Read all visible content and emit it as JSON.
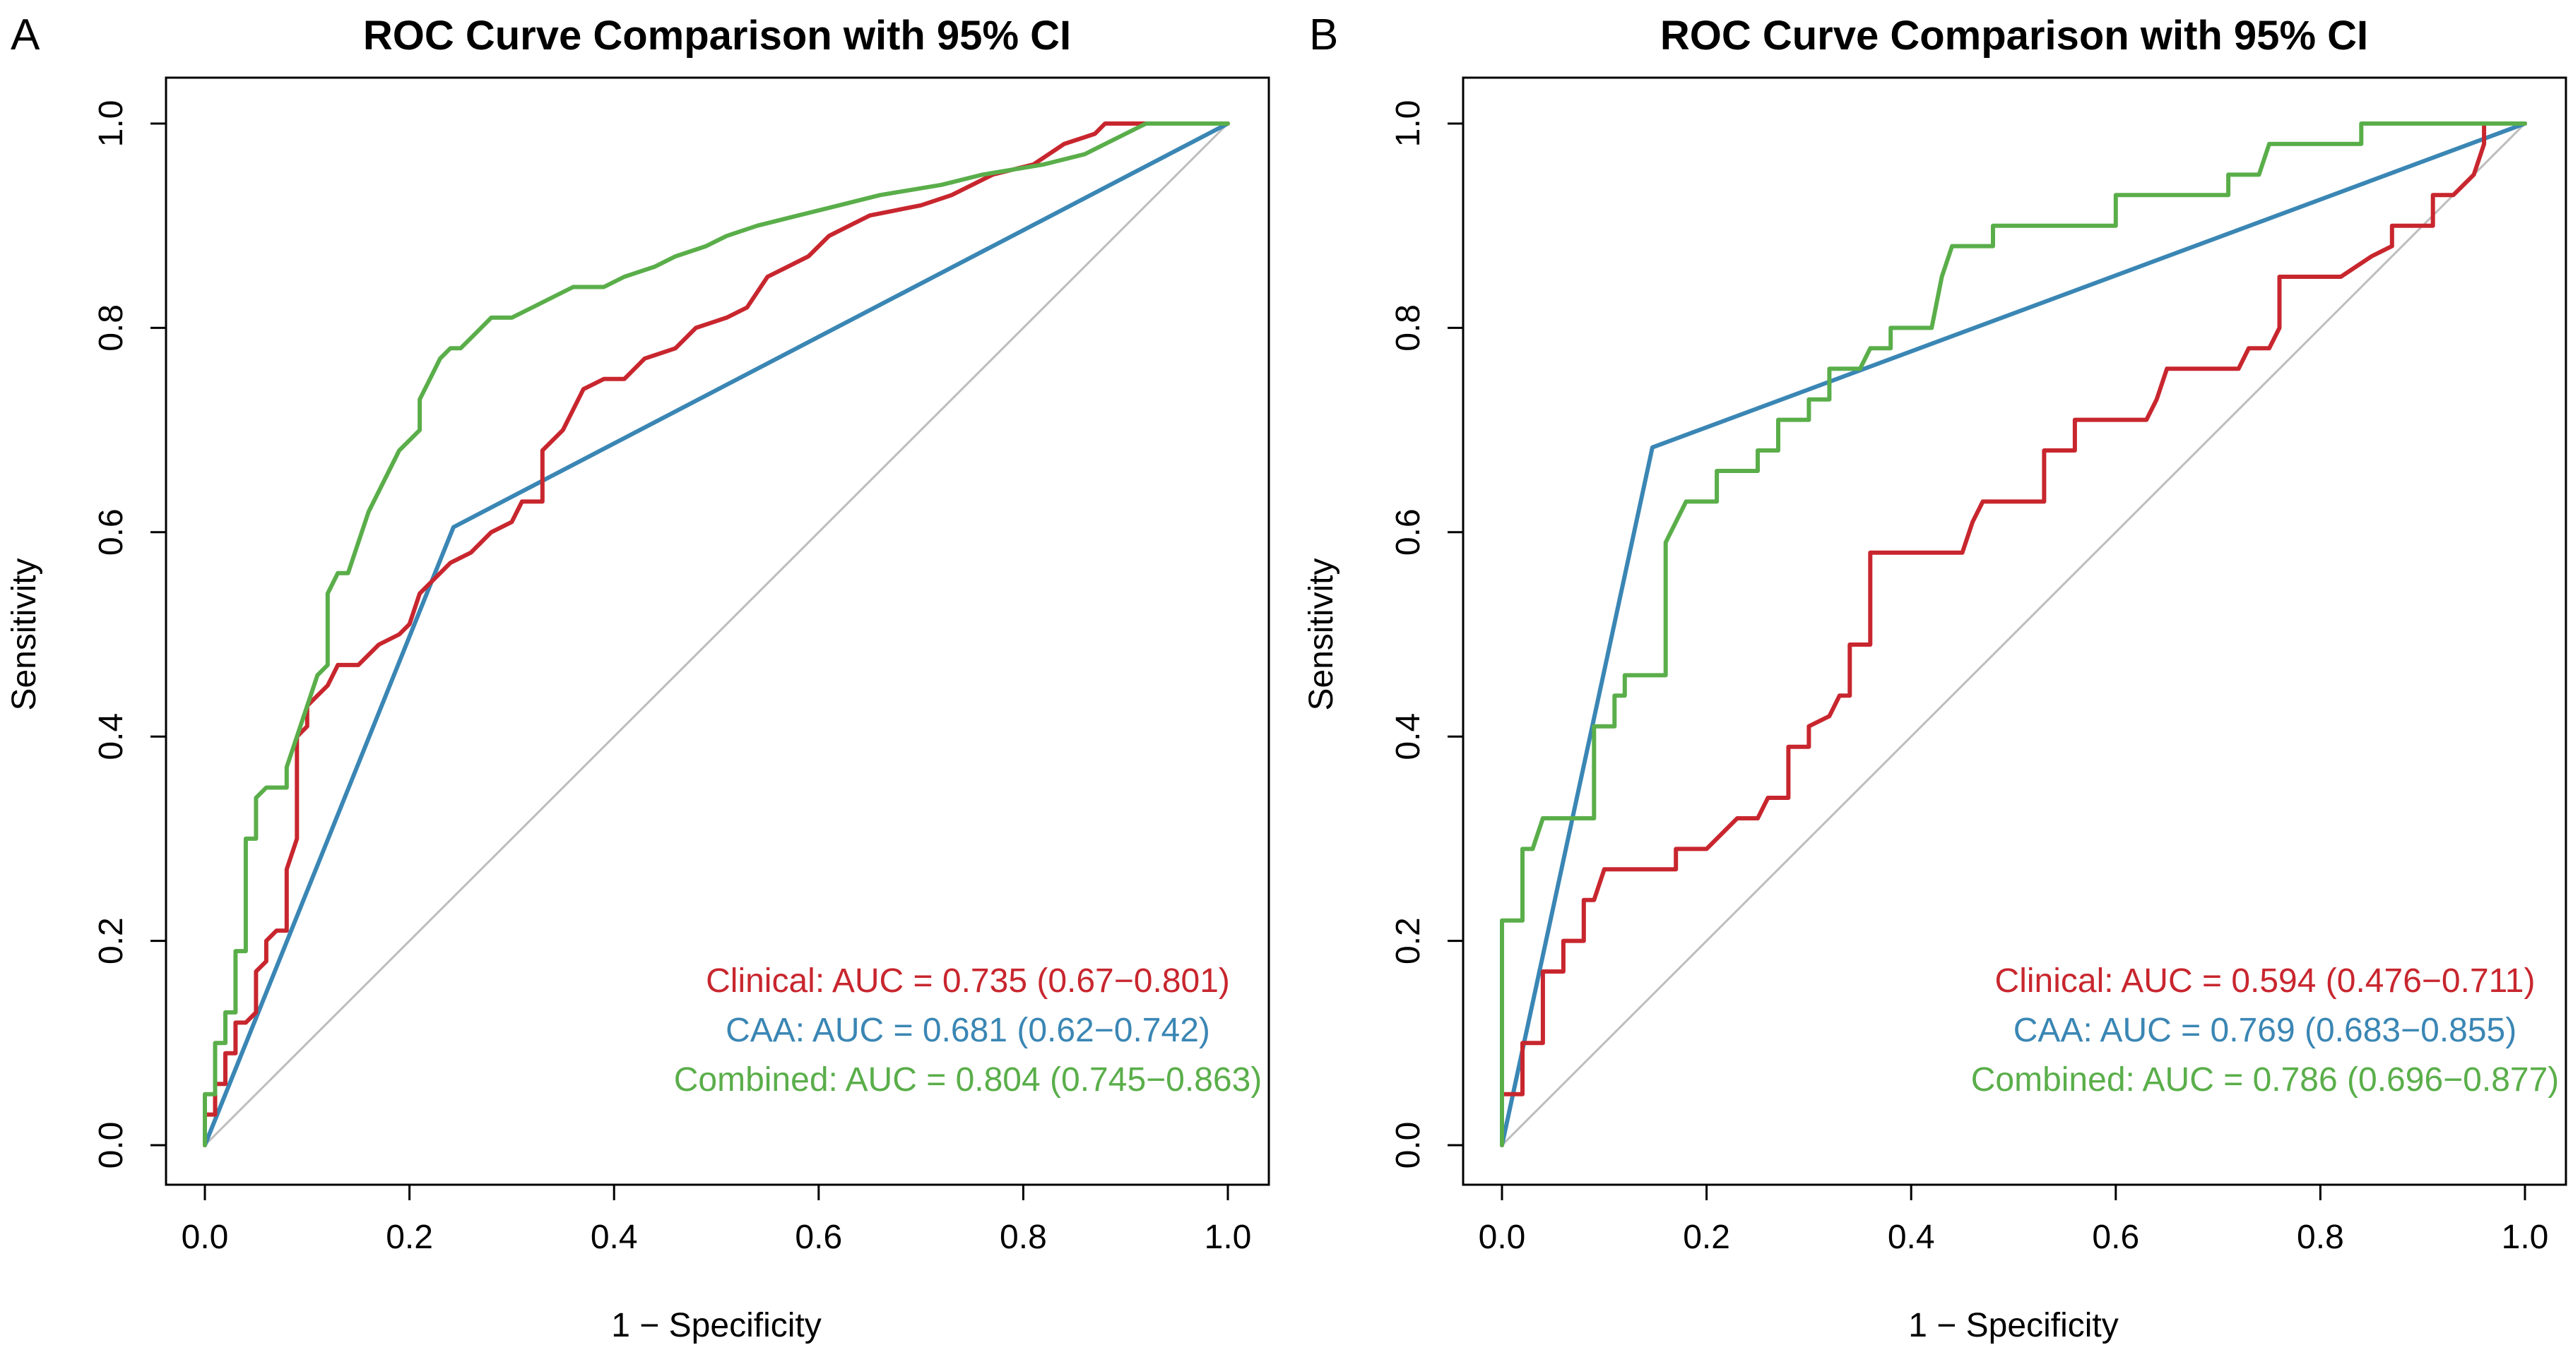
{
  "colors": {
    "clinical": "#c8262e",
    "caa": "#3a86b4",
    "combined": "#5aae4a",
    "diagonal": "#bdbdbd",
    "axis": "#000000"
  },
  "chart_data": [
    {
      "panel": "A",
      "type": "line",
      "title": "ROC Curve Comparison with 95% CI",
      "xlabel": "1 − Specificity",
      "ylabel": "Sensitivity",
      "xlim": [
        0,
        1
      ],
      "ylim": [
        0,
        1
      ],
      "x_ticks": [
        "0.0",
        "0.2",
        "0.4",
        "0.6",
        "0.8",
        "1.0"
      ],
      "y_ticks": [
        "0.0",
        "0.2",
        "0.4",
        "0.6",
        "0.8",
        "1.0"
      ],
      "reference_line": [
        [
          0,
          0
        ],
        [
          1,
          1
        ]
      ],
      "series": [
        {
          "name": "Clinical",
          "key": "clinical",
          "legend": "Clinical: AUC = 0.735 (0.67−0.801)",
          "points": [
            [
              0,
              0
            ],
            [
              0,
              0.03
            ],
            [
              0.01,
              0.03
            ],
            [
              0.01,
              0.06
            ],
            [
              0.02,
              0.06
            ],
            [
              0.02,
              0.09
            ],
            [
              0.03,
              0.09
            ],
            [
              0.03,
              0.12
            ],
            [
              0.04,
              0.12
            ],
            [
              0.05,
              0.13
            ],
            [
              0.05,
              0.17
            ],
            [
              0.06,
              0.18
            ],
            [
              0.06,
              0.2
            ],
            [
              0.07,
              0.21
            ],
            [
              0.08,
              0.21
            ],
            [
              0.08,
              0.27
            ],
            [
              0.09,
              0.3
            ],
            [
              0.09,
              0.4
            ],
            [
              0.1,
              0.41
            ],
            [
              0.1,
              0.43
            ],
            [
              0.11,
              0.44
            ],
            [
              0.12,
              0.45
            ],
            [
              0.13,
              0.47
            ],
            [
              0.15,
              0.47
            ],
            [
              0.17,
              0.49
            ],
            [
              0.19,
              0.5
            ],
            [
              0.2,
              0.51
            ],
            [
              0.21,
              0.54
            ],
            [
              0.22,
              0.55
            ],
            [
              0.23,
              0.56
            ],
            [
              0.24,
              0.57
            ],
            [
              0.26,
              0.58
            ],
            [
              0.28,
              0.6
            ],
            [
              0.3,
              0.61
            ],
            [
              0.31,
              0.63
            ],
            [
              0.33,
              0.63
            ],
            [
              0.33,
              0.68
            ],
            [
              0.35,
              0.7
            ],
            [
              0.37,
              0.74
            ],
            [
              0.39,
              0.75
            ],
            [
              0.41,
              0.75
            ],
            [
              0.43,
              0.77
            ],
            [
              0.46,
              0.78
            ],
            [
              0.48,
              0.8
            ],
            [
              0.51,
              0.81
            ],
            [
              0.53,
              0.82
            ],
            [
              0.55,
              0.85
            ],
            [
              0.57,
              0.86
            ],
            [
              0.59,
              0.87
            ],
            [
              0.61,
              0.89
            ],
            [
              0.63,
              0.9
            ],
            [
              0.65,
              0.91
            ],
            [
              0.7,
              0.92
            ],
            [
              0.73,
              0.93
            ],
            [
              0.77,
              0.95
            ],
            [
              0.81,
              0.96
            ],
            [
              0.84,
              0.98
            ],
            [
              0.87,
              0.99
            ],
            [
              0.88,
              1
            ],
            [
              0.91,
              1
            ],
            [
              1,
              1
            ]
          ]
        },
        {
          "name": "CAA",
          "key": "caa",
          "legend": "CAA: AUC = 0.681 (0.62−0.742)",
          "points": [
            [
              0,
              0
            ],
            [
              0.243,
              0.605
            ],
            [
              1,
              1
            ]
          ]
        },
        {
          "name": "Combined",
          "key": "combined",
          "legend": "Combined: AUC = 0.804 (0.745−0.863)",
          "points": [
            [
              0,
              0
            ],
            [
              0,
              0.05
            ],
            [
              0.01,
              0.05
            ],
            [
              0.01,
              0.1
            ],
            [
              0.02,
              0.1
            ],
            [
              0.02,
              0.13
            ],
            [
              0.03,
              0.13
            ],
            [
              0.03,
              0.19
            ],
            [
              0.04,
              0.19
            ],
            [
              0.04,
              0.3
            ],
            [
              0.05,
              0.3
            ],
            [
              0.05,
              0.34
            ],
            [
              0.06,
              0.35
            ],
            [
              0.08,
              0.35
            ],
            [
              0.08,
              0.37
            ],
            [
              0.09,
              0.4
            ],
            [
              0.1,
              0.43
            ],
            [
              0.11,
              0.46
            ],
            [
              0.12,
              0.47
            ],
            [
              0.12,
              0.54
            ],
            [
              0.13,
              0.56
            ],
            [
              0.14,
              0.56
            ],
            [
              0.15,
              0.59
            ],
            [
              0.16,
              0.62
            ],
            [
              0.17,
              0.64
            ],
            [
              0.18,
              0.66
            ],
            [
              0.19,
              0.68
            ],
            [
              0.2,
              0.69
            ],
            [
              0.21,
              0.7
            ],
            [
              0.21,
              0.73
            ],
            [
              0.22,
              0.75
            ],
            [
              0.23,
              0.77
            ],
            [
              0.24,
              0.78
            ],
            [
              0.25,
              0.78
            ],
            [
              0.26,
              0.79
            ],
            [
              0.27,
              0.8
            ],
            [
              0.28,
              0.81
            ],
            [
              0.3,
              0.81
            ],
            [
              0.32,
              0.82
            ],
            [
              0.34,
              0.83
            ],
            [
              0.36,
              0.84
            ],
            [
              0.39,
              0.84
            ],
            [
              0.41,
              0.85
            ],
            [
              0.44,
              0.86
            ],
            [
              0.46,
              0.87
            ],
            [
              0.49,
              0.88
            ],
            [
              0.51,
              0.89
            ],
            [
              0.54,
              0.9
            ],
            [
              0.58,
              0.91
            ],
            [
              0.62,
              0.92
            ],
            [
              0.66,
              0.93
            ],
            [
              0.72,
              0.94
            ],
            [
              0.76,
              0.95
            ],
            [
              0.82,
              0.96
            ],
            [
              0.86,
              0.97
            ],
            [
              0.88,
              0.98
            ],
            [
              0.92,
              1
            ],
            [
              1,
              1
            ]
          ]
        }
      ]
    },
    {
      "panel": "B",
      "type": "line",
      "title": "ROC Curve Comparison with 95% CI",
      "xlabel": "1 − Specificity",
      "ylabel": "Sensitivity",
      "xlim": [
        0,
        1
      ],
      "ylim": [
        0,
        1
      ],
      "x_ticks": [
        "0.0",
        "0.2",
        "0.4",
        "0.6",
        "0.8",
        "1.0"
      ],
      "y_ticks": [
        "0.0",
        "0.2",
        "0.4",
        "0.6",
        "0.8",
        "1.0"
      ],
      "reference_line": [
        [
          0,
          0
        ],
        [
          1,
          1
        ]
      ],
      "series": [
        {
          "name": "Clinical",
          "key": "clinical",
          "legend": "Clinical: AUC = 0.594 (0.476−0.711)",
          "points": [
            [
              0,
              0
            ],
            [
              0,
              0.05
            ],
            [
              0.02,
              0.05
            ],
            [
              0.02,
              0.1
            ],
            [
              0.04,
              0.1
            ],
            [
              0.04,
              0.17
            ],
            [
              0.06,
              0.17
            ],
            [
              0.06,
              0.2
            ],
            [
              0.08,
              0.2
            ],
            [
              0.08,
              0.24
            ],
            [
              0.09,
              0.24
            ],
            [
              0.1,
              0.27
            ],
            [
              0.17,
              0.27
            ],
            [
              0.17,
              0.29
            ],
            [
              0.2,
              0.29
            ],
            [
              0.23,
              0.32
            ],
            [
              0.25,
              0.32
            ],
            [
              0.26,
              0.34
            ],
            [
              0.28,
              0.34
            ],
            [
              0.28,
              0.39
            ],
            [
              0.3,
              0.39
            ],
            [
              0.3,
              0.41
            ],
            [
              0.32,
              0.42
            ],
            [
              0.33,
              0.44
            ],
            [
              0.34,
              0.44
            ],
            [
              0.34,
              0.49
            ],
            [
              0.36,
              0.49
            ],
            [
              0.36,
              0.58
            ],
            [
              0.45,
              0.58
            ],
            [
              0.46,
              0.61
            ],
            [
              0.47,
              0.63
            ],
            [
              0.53,
              0.63
            ],
            [
              0.53,
              0.68
            ],
            [
              0.56,
              0.68
            ],
            [
              0.56,
              0.71
            ],
            [
              0.63,
              0.71
            ],
            [
              0.64,
              0.73
            ],
            [
              0.65,
              0.76
            ],
            [
              0.72,
              0.76
            ],
            [
              0.73,
              0.78
            ],
            [
              0.75,
              0.78
            ],
            [
              0.76,
              0.8
            ],
            [
              0.76,
              0.85
            ],
            [
              0.82,
              0.85
            ],
            [
              0.85,
              0.87
            ],
            [
              0.87,
              0.88
            ],
            [
              0.87,
              0.9
            ],
            [
              0.91,
              0.9
            ],
            [
              0.91,
              0.93
            ],
            [
              0.93,
              0.93
            ],
            [
              0.95,
              0.95
            ],
            [
              0.96,
              0.98
            ],
            [
              0.96,
              1
            ],
            [
              1,
              1
            ]
          ]
        },
        {
          "name": "CAA",
          "key": "caa",
          "legend": "CAA: AUC = 0.769 (0.683−0.855)",
          "points": [
            [
              0,
              0
            ],
            [
              0.147,
              0.683
            ],
            [
              1,
              1
            ]
          ]
        },
        {
          "name": "Combined",
          "key": "combined",
          "legend": "Combined: AUC = 0.786 (0.696−0.877)",
          "points": [
            [
              0,
              0
            ],
            [
              0,
              0.22
            ],
            [
              0.02,
              0.22
            ],
            [
              0.02,
              0.29
            ],
            [
              0.03,
              0.29
            ],
            [
              0.04,
              0.32
            ],
            [
              0.09,
              0.32
            ],
            [
              0.09,
              0.41
            ],
            [
              0.11,
              0.41
            ],
            [
              0.11,
              0.44
            ],
            [
              0.12,
              0.44
            ],
            [
              0.12,
              0.46
            ],
            [
              0.16,
              0.46
            ],
            [
              0.16,
              0.59
            ],
            [
              0.18,
              0.63
            ],
            [
              0.21,
              0.63
            ],
            [
              0.21,
              0.66
            ],
            [
              0.25,
              0.66
            ],
            [
              0.25,
              0.68
            ],
            [
              0.27,
              0.68
            ],
            [
              0.27,
              0.71
            ],
            [
              0.3,
              0.71
            ],
            [
              0.3,
              0.73
            ],
            [
              0.32,
              0.73
            ],
            [
              0.32,
              0.76
            ],
            [
              0.35,
              0.76
            ],
            [
              0.36,
              0.78
            ],
            [
              0.38,
              0.78
            ],
            [
              0.38,
              0.8
            ],
            [
              0.42,
              0.8
            ],
            [
              0.43,
              0.85
            ],
            [
              0.44,
              0.88
            ],
            [
              0.48,
              0.88
            ],
            [
              0.48,
              0.9
            ],
            [
              0.6,
              0.9
            ],
            [
              0.6,
              0.93
            ],
            [
              0.71,
              0.93
            ],
            [
              0.71,
              0.95
            ],
            [
              0.74,
              0.95
            ],
            [
              0.75,
              0.98
            ],
            [
              0.84,
              0.98
            ],
            [
              0.84,
              1
            ],
            [
              1,
              1
            ]
          ]
        }
      ]
    }
  ]
}
